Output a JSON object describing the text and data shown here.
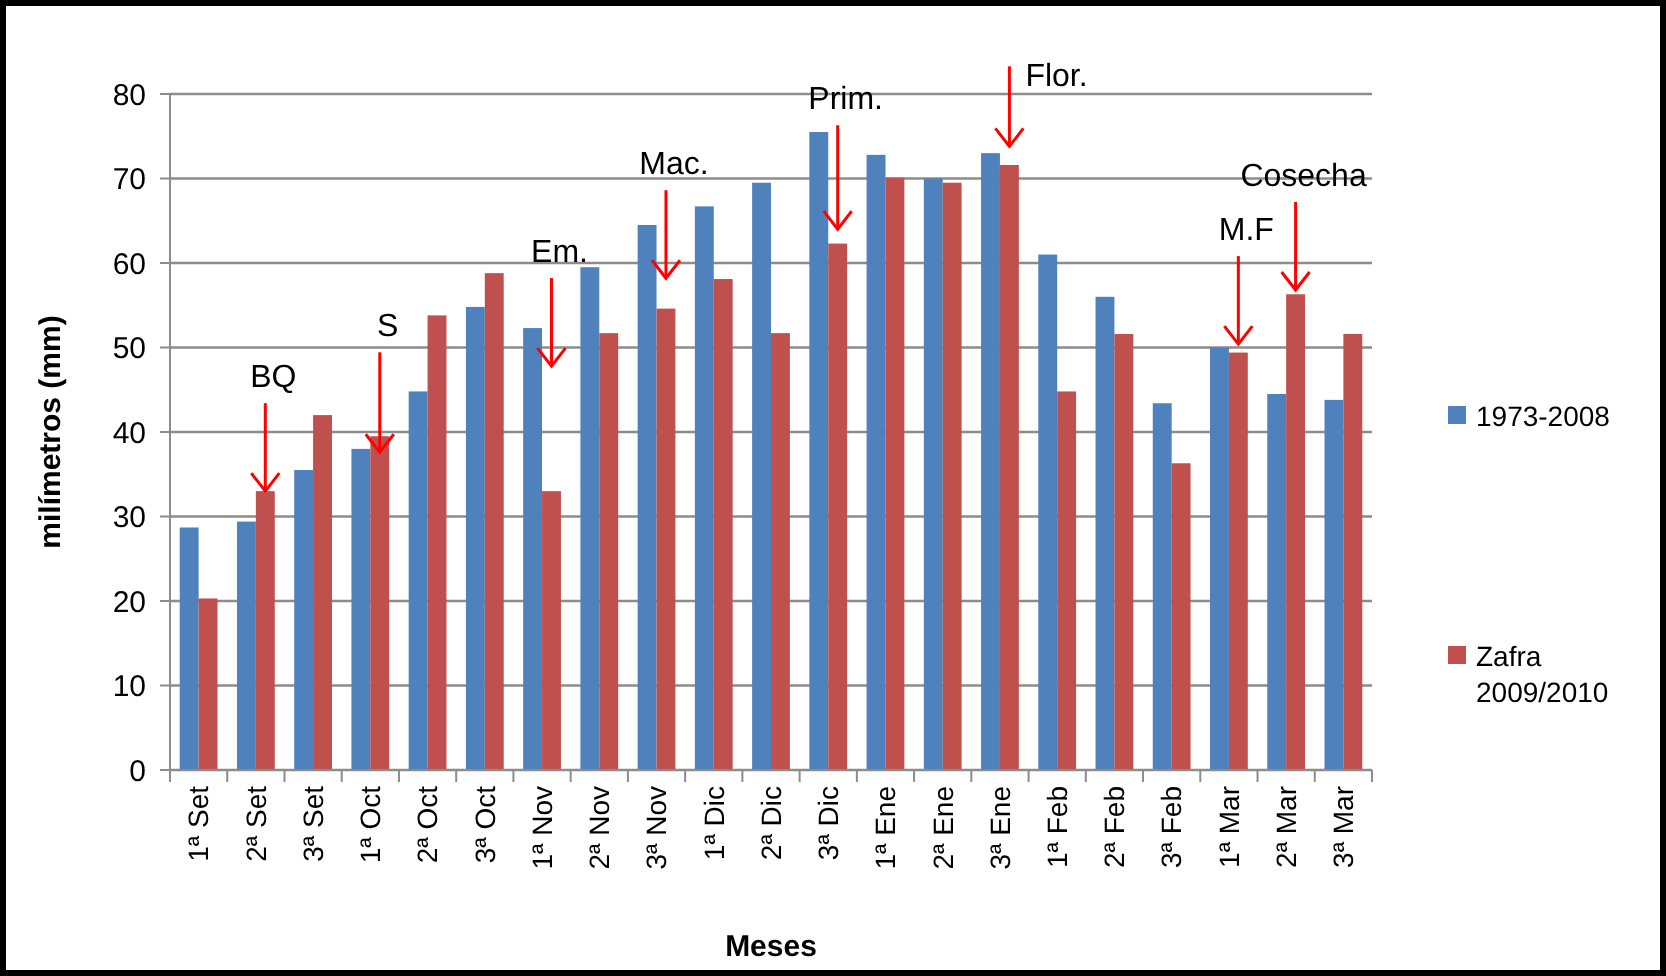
{
  "chart_data": {
    "type": "bar",
    "xlabel": "Meses",
    "ylabel": "milímetros (mm)",
    "categories": [
      "1ª Set",
      "2ª Set",
      "3ª Set",
      "1ª Oct",
      "2ª Oct",
      "3ª Oct",
      "1ª Nov",
      "2ª Nov",
      "3ª Nov",
      "1ª Dic",
      "2ª Dic",
      "3ª Dic",
      "1ª Ene",
      "2ª Ene",
      "3ª Ene",
      "1ª Feb",
      "2ª Feb",
      "3ª Feb",
      "1ª Mar",
      "2ª Mar",
      "3ª Mar"
    ],
    "series": [
      {
        "name": "1973-2008",
        "color": "#4f81bd",
        "values": [
          28.7,
          29.4,
          35.5,
          38,
          44.8,
          54.8,
          52.3,
          59.5,
          64.5,
          66.7,
          69.5,
          75.5,
          72.8,
          70,
          73,
          61,
          56,
          43.4,
          50,
          44.5,
          43.8
        ]
      },
      {
        "name": "Zafra 2009/2010",
        "color": "#c0504d",
        "values": [
          20.3,
          33,
          42,
          39.5,
          53.8,
          58.8,
          33,
          51.7,
          54.6,
          58.1,
          51.7,
          62.3,
          70.1,
          69.5,
          71.6,
          44.8,
          51.6,
          36.3,
          49.4,
          56.3,
          51.6
        ]
      }
    ],
    "ylim": [
      0,
      80
    ],
    "yticks": [
      0,
      10,
      20,
      30,
      40,
      50,
      60,
      70,
      80
    ],
    "grid": "y",
    "legend": "right",
    "annotations": [
      {
        "text": "BQ",
        "x": "2ª Set",
        "y": 33
      },
      {
        "text": "S",
        "x": "1ª Oct",
        "y": 37.6
      },
      {
        "text": "Em.",
        "x": "1ª Nov",
        "y": 47.8
      },
      {
        "text": "Mac.",
        "x": "3ª Nov",
        "y": 58.2
      },
      {
        "text": "Prim.",
        "x": "3ª Dic",
        "y": 64
      },
      {
        "text": "Flor.",
        "x": "3ª Ene",
        "y": 73.8
      },
      {
        "text": "M.F",
        "x": "1ª Mar",
        "y": 50.4
      },
      {
        "text": "Cosecha",
        "x": "2ª Mar",
        "y": 56.8
      }
    ]
  }
}
